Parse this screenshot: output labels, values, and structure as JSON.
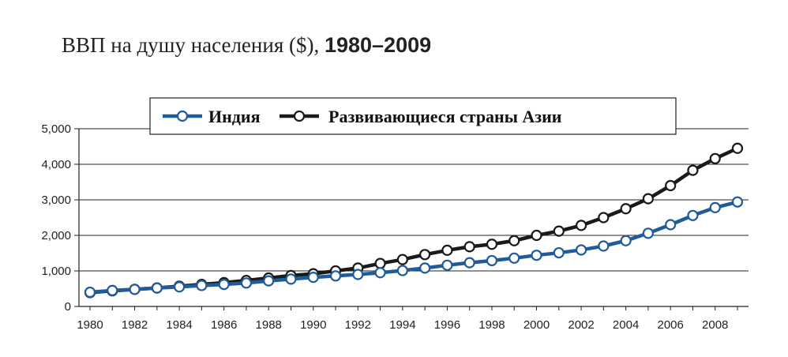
{
  "title": {
    "main": "ВВП на душу населения ($),",
    "years": "1980–2009"
  },
  "chart_data": {
    "type": "line",
    "title": "ВВП на душу населения ($), 1980–2009",
    "xlabel": "",
    "ylabel": "",
    "x": [
      1980,
      1981,
      1982,
      1983,
      1984,
      1985,
      1986,
      1987,
      1988,
      1989,
      1990,
      1991,
      1992,
      1993,
      1994,
      1995,
      1996,
      1997,
      1998,
      1999,
      2000,
      2001,
      2002,
      2003,
      2004,
      2005,
      2006,
      2007,
      2008,
      2009
    ],
    "xticks": [
      "1980",
      "1982",
      "1984",
      "1986",
      "1988",
      "1990",
      "1992",
      "1994",
      "1996",
      "1998",
      "2000",
      "2002",
      "2004",
      "2006",
      "2008"
    ],
    "yticks": [
      "0",
      "1,000",
      "2,000",
      "3,000",
      "4,000",
      "5,000"
    ],
    "ylim": [
      0,
      5000
    ],
    "grid": true,
    "legend_position": "top",
    "series": [
      {
        "name": "Индия",
        "color": "#1f5c99",
        "values": [
          400,
          450,
          480,
          520,
          550,
          590,
          620,
          660,
          720,
          770,
          820,
          860,
          900,
          950,
          1010,
          1080,
          1160,
          1230,
          1290,
          1360,
          1440,
          1510,
          1590,
          1700,
          1850,
          2060,
          2300,
          2560,
          2780,
          2940
        ]
      },
      {
        "name": "Развивающиеся страны Азии",
        "color": "#1a1a1a",
        "values": [
          390,
          440,
          480,
          520,
          570,
          620,
          670,
          730,
          800,
          870,
          920,
          1000,
          1080,
          1210,
          1320,
          1460,
          1580,
          1680,
          1750,
          1850,
          2000,
          2120,
          2280,
          2500,
          2750,
          3030,
          3400,
          3830,
          4160,
          4450
        ]
      }
    ]
  }
}
